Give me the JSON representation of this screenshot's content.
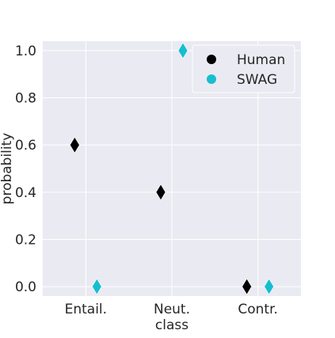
{
  "chart_data": {
    "type": "scatter",
    "title": "",
    "xlabel": "class",
    "ylabel": "probability",
    "categories": [
      "Entail.",
      "Neut.",
      "Contr."
    ],
    "ylim": [
      -0.04,
      1.04
    ],
    "yticks": [
      0.0,
      0.2,
      0.4,
      0.6,
      0.8,
      1.0
    ],
    "ytick_labels": [
      "0.0",
      "0.2",
      "0.4",
      "0.6",
      "0.8",
      "1.0"
    ],
    "grid": true,
    "legend_position": "top-right",
    "marker": "diamond",
    "series": [
      {
        "name": "Human",
        "color": "#000000",
        "values": [
          0.6,
          0.4,
          0.0
        ]
      },
      {
        "name": "SWAG",
        "color": "#17becf",
        "values": [
          0.0,
          1.0,
          0.0
        ]
      }
    ],
    "colors": {
      "plot_background": "#eaeaf2",
      "grid": "#ffffff"
    }
  }
}
